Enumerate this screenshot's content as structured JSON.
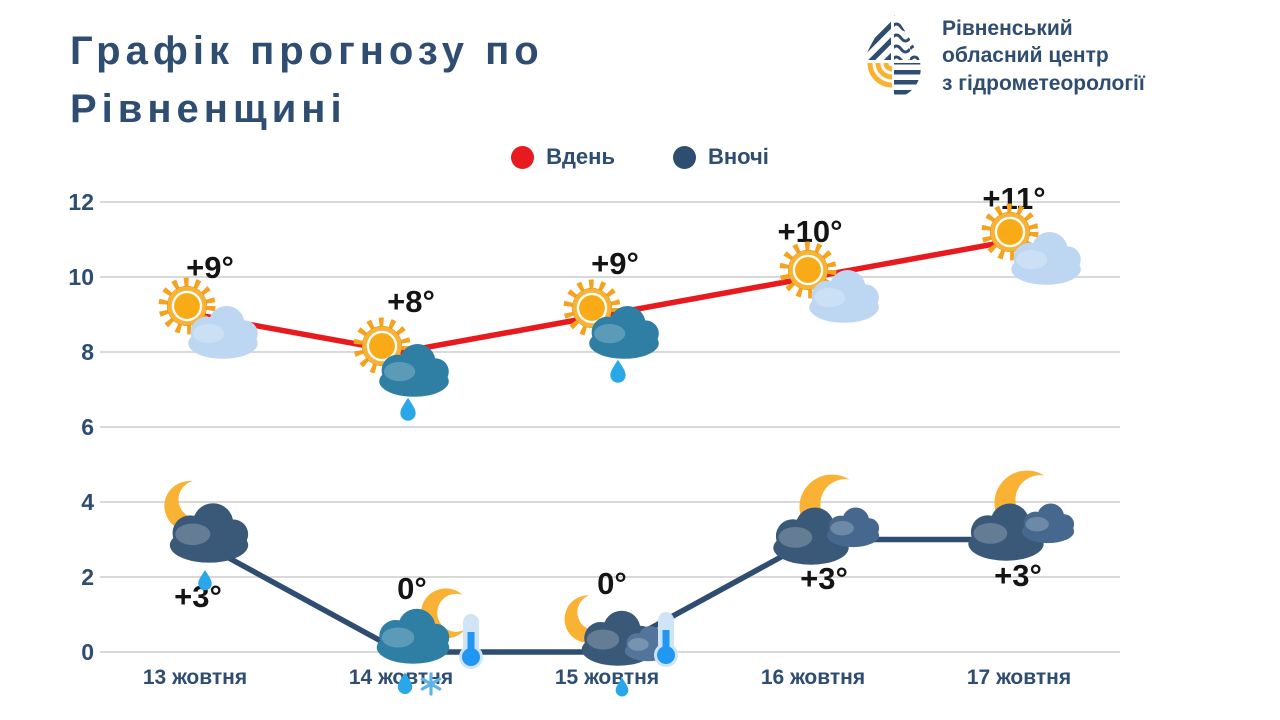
{
  "header": {
    "title": "Графік прогнозу по Рівненщині"
  },
  "logo": {
    "lines": [
      "Рівненський",
      "обласний центр",
      "з гідрометеорології"
    ]
  },
  "legend": {
    "day": {
      "label": "Вдень",
      "color": "#e8191f"
    },
    "night": {
      "label": "Вночі",
      "color": "#2e4d71"
    }
  },
  "chart_data": {
    "type": "line",
    "title": "Графік прогнозу по Рівненщині",
    "categories": [
      "13 жовтня",
      "14 жовтня",
      "15 жовтня",
      "16 жовтня",
      "17 жовтня"
    ],
    "y_ticks": [
      0,
      2,
      4,
      6,
      8,
      10,
      12
    ],
    "ylim": [
      0,
      12.5
    ],
    "grid": true,
    "legend_position": "top",
    "series": [
      {
        "name": "Вдень",
        "color": "#e8191f",
        "values": [
          9,
          8,
          9,
          10,
          11
        ],
        "data_labels": [
          "+9°",
          "+8°",
          "+9°",
          "+10°",
          "+11°"
        ],
        "icons": [
          "sun-cloud",
          "sun-rain",
          "sun-rain",
          "sun-cloud",
          "sun-cloud"
        ]
      },
      {
        "name": "Вночі",
        "color": "#2e4d71",
        "values": [
          3,
          0,
          0,
          3,
          3
        ],
        "data_labels": [
          "+3°",
          "0°",
          "0°",
          "+3°",
          "+3°"
        ],
        "icons": [
          "moon-rain",
          "moon-rain-thermo-snow",
          "moon-rain-thermo",
          "moon-clouds",
          "moon-clouds"
        ]
      }
    ]
  }
}
